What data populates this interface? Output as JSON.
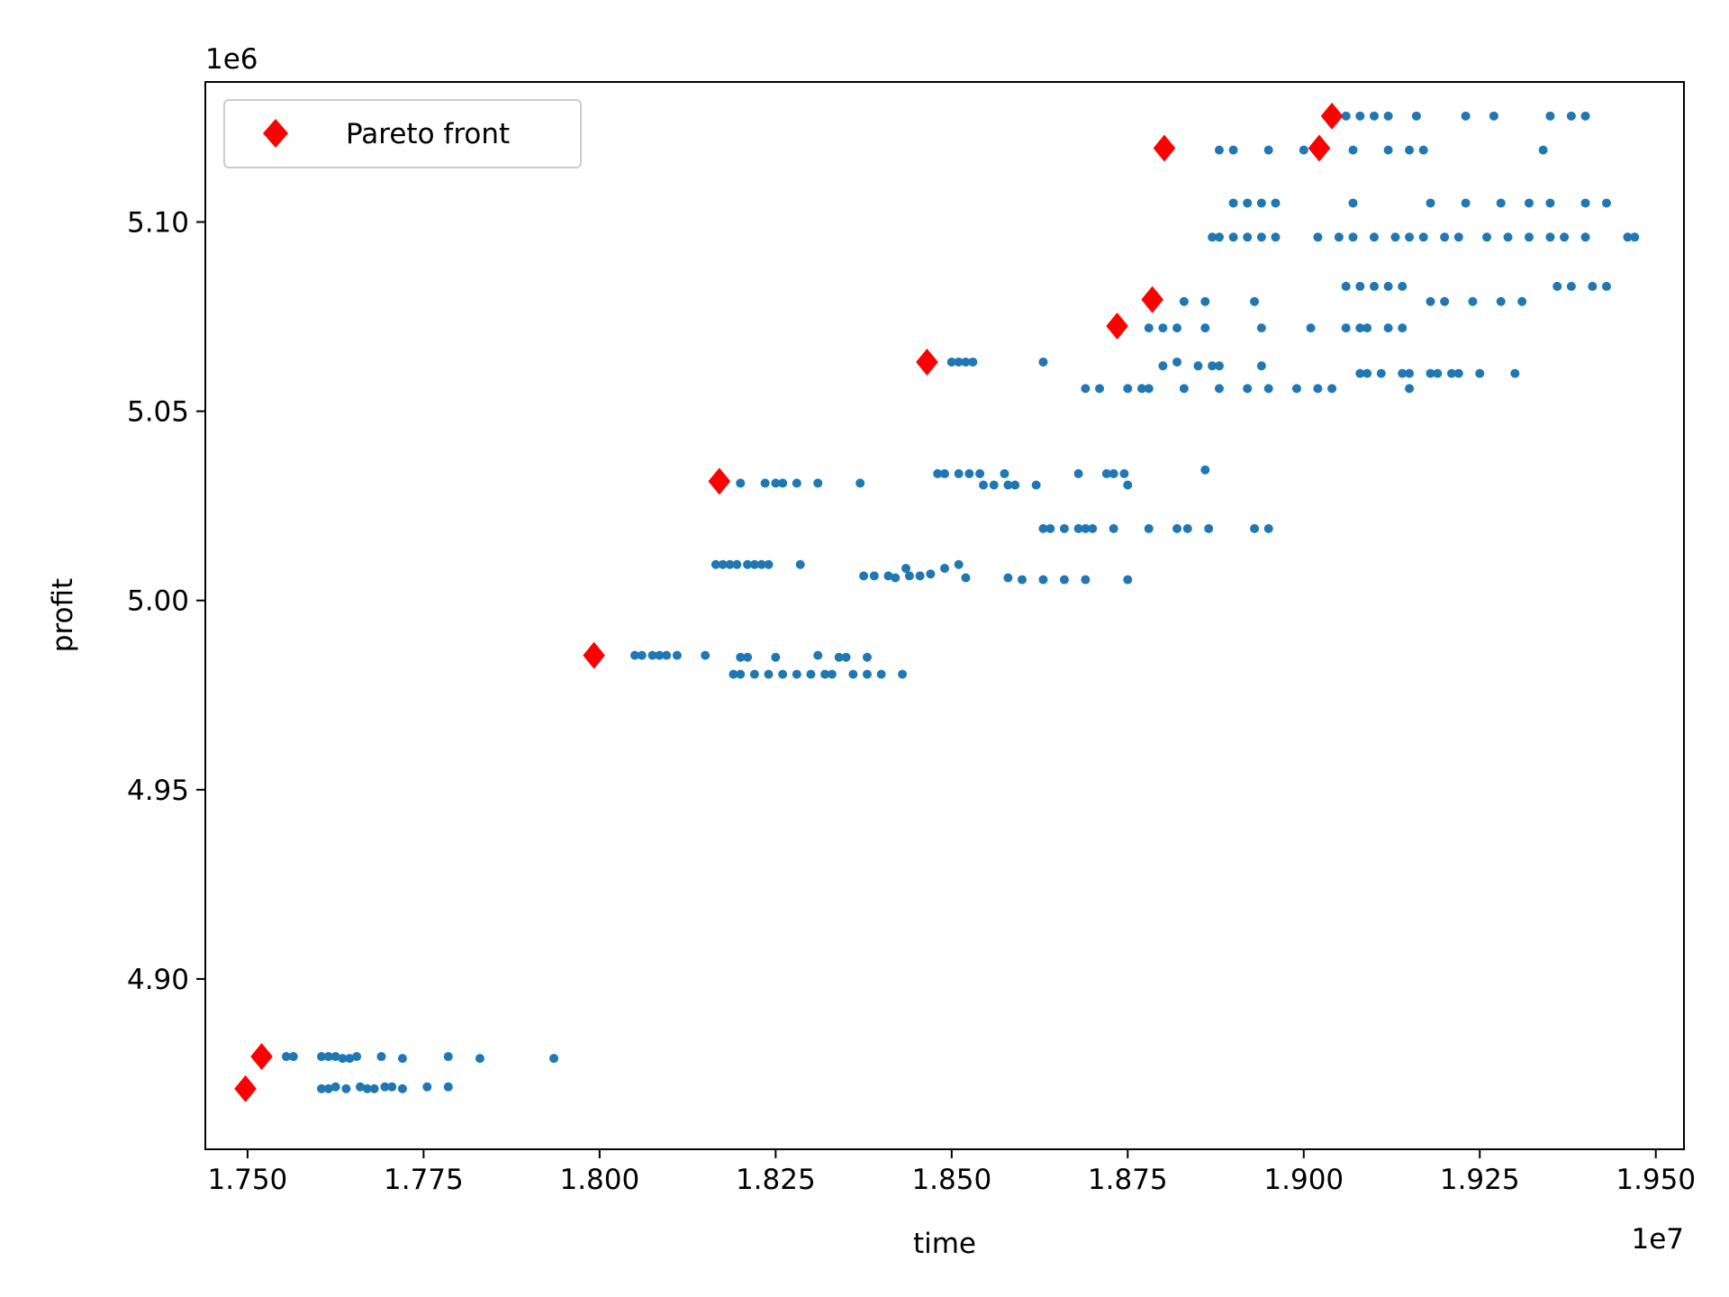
{
  "chart_data": {
    "type": "scatter",
    "title": "",
    "xlabel": "time",
    "ylabel": "profit",
    "x_offset_label": "1e7",
    "y_offset_label": "1e6",
    "xlim": [
      17.44,
      19.54
    ],
    "ylim": [
      4.855,
      5.137
    ],
    "x_ticks": [
      17.5,
      17.75,
      18.0,
      18.25,
      18.5,
      18.75,
      19.0,
      19.25,
      19.5
    ],
    "x_tick_labels": [
      "1.750",
      "1.775",
      "1.800",
      "1.825",
      "1.850",
      "1.875",
      "1.900",
      "1.925",
      "1.950"
    ],
    "y_ticks": [
      4.9,
      4.95,
      5.0,
      5.05,
      5.1
    ],
    "y_tick_labels": [
      "4.90",
      "4.95",
      "5.00",
      "5.05",
      "5.10"
    ],
    "grid": false,
    "legend_position": "upper-left",
    "series": [
      {
        "name": "",
        "color": "#1f77b4",
        "marker": "circle",
        "points": [
          [
            17.555,
            4.8795
          ],
          [
            17.565,
            4.8795
          ],
          [
            17.605,
            4.8795
          ],
          [
            17.615,
            4.8795
          ],
          [
            17.625,
            4.8795
          ],
          [
            17.635,
            4.879
          ],
          [
            17.645,
            4.879
          ],
          [
            17.655,
            4.8795
          ],
          [
            17.69,
            4.8795
          ],
          [
            17.72,
            4.879
          ],
          [
            17.785,
            4.8795
          ],
          [
            17.83,
            4.879
          ],
          [
            17.935,
            4.879
          ],
          [
            17.605,
            4.871
          ],
          [
            17.615,
            4.871
          ],
          [
            17.625,
            4.8715
          ],
          [
            17.64,
            4.871
          ],
          [
            17.66,
            4.8715
          ],
          [
            17.67,
            4.871
          ],
          [
            17.68,
            4.871
          ],
          [
            17.695,
            4.8715
          ],
          [
            17.705,
            4.8715
          ],
          [
            17.72,
            4.871
          ],
          [
            17.755,
            4.8715
          ],
          [
            17.785,
            4.8715
          ],
          [
            18.05,
            4.9855
          ],
          [
            18.06,
            4.9855
          ],
          [
            18.075,
            4.9855
          ],
          [
            18.085,
            4.9855
          ],
          [
            18.095,
            4.9855
          ],
          [
            18.11,
            4.9855
          ],
          [
            18.15,
            4.9855
          ],
          [
            18.2,
            4.985
          ],
          [
            18.21,
            4.985
          ],
          [
            18.25,
            4.985
          ],
          [
            18.31,
            4.9855
          ],
          [
            18.34,
            4.985
          ],
          [
            18.35,
            4.985
          ],
          [
            18.38,
            4.985
          ],
          [
            18.19,
            4.9805
          ],
          [
            18.2,
            4.9805
          ],
          [
            18.22,
            4.9805
          ],
          [
            18.24,
            4.9805
          ],
          [
            18.26,
            4.9805
          ],
          [
            18.28,
            4.9805
          ],
          [
            18.3,
            4.9805
          ],
          [
            18.32,
            4.9805
          ],
          [
            18.33,
            4.9805
          ],
          [
            18.36,
            4.9805
          ],
          [
            18.38,
            4.9805
          ],
          [
            18.4,
            4.9805
          ],
          [
            18.43,
            4.9805
          ],
          [
            18.165,
            5.0095
          ],
          [
            18.175,
            5.0095
          ],
          [
            18.185,
            5.0095
          ],
          [
            18.195,
            5.0095
          ],
          [
            18.21,
            5.0095
          ],
          [
            18.22,
            5.0095
          ],
          [
            18.23,
            5.0095
          ],
          [
            18.24,
            5.0095
          ],
          [
            18.285,
            5.0095
          ],
          [
            18.375,
            5.0065
          ],
          [
            18.39,
            5.0065
          ],
          [
            18.41,
            5.0065
          ],
          [
            18.42,
            5.006
          ],
          [
            18.435,
            5.0085
          ],
          [
            18.44,
            5.0065
          ],
          [
            18.455,
            5.0065
          ],
          [
            18.47,
            5.007
          ],
          [
            18.49,
            5.0085
          ],
          [
            18.51,
            5.0095
          ],
          [
            18.52,
            5.006
          ],
          [
            18.58,
            5.006
          ],
          [
            18.6,
            5.0055
          ],
          [
            18.63,
            5.0055
          ],
          [
            18.66,
            5.0055
          ],
          [
            18.69,
            5.0055
          ],
          [
            18.75,
            5.0055
          ],
          [
            18.2,
            5.031
          ],
          [
            18.235,
            5.031
          ],
          [
            18.25,
            5.031
          ],
          [
            18.26,
            5.031
          ],
          [
            18.28,
            5.031
          ],
          [
            18.31,
            5.031
          ],
          [
            18.37,
            5.031
          ],
          [
            18.48,
            5.0335
          ],
          [
            18.49,
            5.0335
          ],
          [
            18.51,
            5.0335
          ],
          [
            18.525,
            5.0335
          ],
          [
            18.54,
            5.0335
          ],
          [
            18.545,
            5.0305
          ],
          [
            18.56,
            5.0305
          ],
          [
            18.575,
            5.0335
          ],
          [
            18.58,
            5.0305
          ],
          [
            18.59,
            5.0305
          ],
          [
            18.62,
            5.0305
          ],
          [
            18.68,
            5.0335
          ],
          [
            18.72,
            5.0335
          ],
          [
            18.73,
            5.0335
          ],
          [
            18.745,
            5.0335
          ],
          [
            18.75,
            5.0305
          ],
          [
            18.86,
            5.0345
          ],
          [
            18.63,
            5.019
          ],
          [
            18.64,
            5.019
          ],
          [
            18.66,
            5.019
          ],
          [
            18.68,
            5.019
          ],
          [
            18.69,
            5.019
          ],
          [
            18.7,
            5.019
          ],
          [
            18.73,
            5.019
          ],
          [
            18.78,
            5.019
          ],
          [
            18.82,
            5.019
          ],
          [
            18.835,
            5.019
          ],
          [
            18.865,
            5.019
          ],
          [
            18.93,
            5.019
          ],
          [
            18.95,
            5.019
          ],
          [
            18.5,
            5.063
          ],
          [
            18.51,
            5.063
          ],
          [
            18.52,
            5.063
          ],
          [
            18.53,
            5.063
          ],
          [
            18.63,
            5.063
          ],
          [
            18.69,
            5.056
          ],
          [
            18.71,
            5.056
          ],
          [
            18.75,
            5.056
          ],
          [
            18.77,
            5.056
          ],
          [
            18.78,
            5.056
          ],
          [
            18.83,
            5.056
          ],
          [
            18.88,
            5.056
          ],
          [
            18.92,
            5.056
          ],
          [
            18.95,
            5.056
          ],
          [
            18.99,
            5.056
          ],
          [
            19.02,
            5.056
          ],
          [
            19.04,
            5.056
          ],
          [
            19.15,
            5.056
          ],
          [
            18.8,
            5.062
          ],
          [
            18.82,
            5.063
          ],
          [
            18.85,
            5.062
          ],
          [
            18.87,
            5.062
          ],
          [
            18.88,
            5.062
          ],
          [
            18.94,
            5.062
          ],
          [
            19.08,
            5.06
          ],
          [
            19.09,
            5.06
          ],
          [
            19.11,
            5.06
          ],
          [
            19.14,
            5.06
          ],
          [
            19.15,
            5.06
          ],
          [
            19.18,
            5.06
          ],
          [
            19.19,
            5.06
          ],
          [
            19.21,
            5.06
          ],
          [
            19.22,
            5.06
          ],
          [
            19.25,
            5.06
          ],
          [
            19.3,
            5.06
          ],
          [
            18.78,
            5.072
          ],
          [
            18.8,
            5.072
          ],
          [
            18.82,
            5.072
          ],
          [
            18.86,
            5.072
          ],
          [
            18.94,
            5.072
          ],
          [
            19.01,
            5.072
          ],
          [
            19.06,
            5.072
          ],
          [
            19.08,
            5.072
          ],
          [
            19.09,
            5.072
          ],
          [
            19.12,
            5.072
          ],
          [
            19.14,
            5.072
          ],
          [
            18.83,
            5.079
          ],
          [
            18.86,
            5.079
          ],
          [
            18.93,
            5.079
          ],
          [
            19.06,
            5.083
          ],
          [
            19.08,
            5.083
          ],
          [
            19.1,
            5.083
          ],
          [
            19.12,
            5.083
          ],
          [
            19.14,
            5.083
          ],
          [
            19.18,
            5.079
          ],
          [
            19.2,
            5.079
          ],
          [
            19.24,
            5.079
          ],
          [
            19.28,
            5.079
          ],
          [
            19.31,
            5.079
          ],
          [
            19.36,
            5.083
          ],
          [
            19.38,
            5.083
          ],
          [
            19.41,
            5.083
          ],
          [
            19.43,
            5.083
          ],
          [
            18.87,
            5.096
          ],
          [
            18.88,
            5.096
          ],
          [
            18.9,
            5.096
          ],
          [
            18.92,
            5.096
          ],
          [
            18.94,
            5.096
          ],
          [
            18.96,
            5.096
          ],
          [
            19.02,
            5.096
          ],
          [
            19.05,
            5.096
          ],
          [
            19.07,
            5.096
          ],
          [
            19.1,
            5.096
          ],
          [
            19.13,
            5.096
          ],
          [
            19.15,
            5.096
          ],
          [
            19.17,
            5.096
          ],
          [
            19.2,
            5.096
          ],
          [
            19.22,
            5.096
          ],
          [
            19.26,
            5.096
          ],
          [
            19.29,
            5.096
          ],
          [
            19.32,
            5.096
          ],
          [
            19.35,
            5.096
          ],
          [
            19.37,
            5.096
          ],
          [
            19.4,
            5.096
          ],
          [
            19.46,
            5.096
          ],
          [
            19.47,
            5.096
          ],
          [
            18.9,
            5.105
          ],
          [
            18.92,
            5.105
          ],
          [
            18.94,
            5.105
          ],
          [
            18.96,
            5.105
          ],
          [
            19.07,
            5.105
          ],
          [
            19.18,
            5.105
          ],
          [
            19.23,
            5.105
          ],
          [
            19.28,
            5.105
          ],
          [
            19.32,
            5.105
          ],
          [
            19.35,
            5.105
          ],
          [
            19.4,
            5.105
          ],
          [
            19.43,
            5.105
          ],
          [
            18.88,
            5.119
          ],
          [
            18.9,
            5.119
          ],
          [
            18.95,
            5.119
          ],
          [
            19.0,
            5.119
          ],
          [
            19.07,
            5.119
          ],
          [
            19.12,
            5.119
          ],
          [
            19.15,
            5.119
          ],
          [
            19.17,
            5.119
          ],
          [
            19.34,
            5.119
          ],
          [
            19.06,
            5.128
          ],
          [
            19.08,
            5.128
          ],
          [
            19.1,
            5.128
          ],
          [
            19.12,
            5.128
          ],
          [
            19.16,
            5.128
          ],
          [
            19.23,
            5.128
          ],
          [
            19.27,
            5.128
          ],
          [
            19.35,
            5.128
          ],
          [
            19.38,
            5.128
          ],
          [
            19.4,
            5.128
          ]
        ]
      },
      {
        "name": "Pareto front",
        "color": "#ff0000",
        "marker": "diamond",
        "points": [
          [
            17.497,
            4.871
          ],
          [
            17.52,
            4.8795
          ],
          [
            17.992,
            4.9855
          ],
          [
            18.17,
            5.0315
          ],
          [
            18.465,
            5.063
          ],
          [
            18.735,
            5.0725
          ],
          [
            18.785,
            5.0795
          ],
          [
            18.802,
            5.1195
          ],
          [
            19.022,
            5.1195
          ],
          [
            19.04,
            5.128
          ]
        ]
      }
    ]
  }
}
